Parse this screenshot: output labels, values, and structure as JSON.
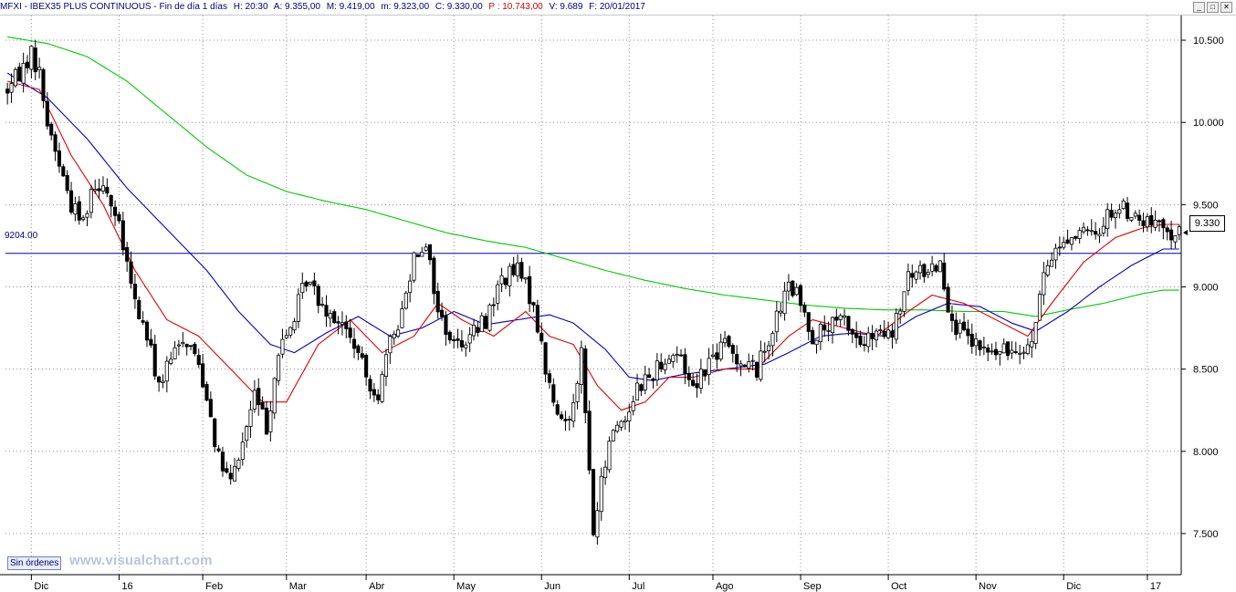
{
  "titlebar": {
    "symbol": "MFXI - IBEX35 PLUS CONTINUOUS - Fin de día 1 días",
    "hour": "H: 20:30",
    "open": "A: 9.355,00",
    "max": "M: 9.419,00",
    "min": "m: 9.323,00",
    "close": "C: 9.330,00",
    "p_value": "P : 10.743,00",
    "volume": "V: 9.689",
    "date": "F: 20/01/2017",
    "buttons": [
      "_",
      "□",
      "✕"
    ]
  },
  "colors": {
    "frame_blue": "#000080",
    "red_value": "#d00000",
    "candle": "#000000",
    "ma_red": "#e00000",
    "ma_blue": "#0000c8",
    "ma_green": "#00cc00",
    "hline": "#0000b0",
    "grid": "#909090"
  },
  "status": {
    "orders": "Sin órdenes",
    "watermark": "www.visualchart.com"
  },
  "chart_data": {
    "type": "candlestick",
    "title": "",
    "ylim": [
      7250,
      10650
    ],
    "y_ticks": [
      "10.500",
      "10.000",
      "9.500",
      "9.000",
      "8.500",
      "8.000",
      "7.500"
    ],
    "y_tick_values": [
      10500,
      10000,
      9500,
      9000,
      8500,
      8000,
      7500
    ],
    "x_labels": [
      "Dic",
      "16",
      "Feb",
      "Mar",
      "Abr",
      "May",
      "Jun",
      "Jul",
      "Ago",
      "Sep",
      "Oct",
      "Nov",
      "Dic",
      "17"
    ],
    "x_label_index": [
      6,
      28,
      49,
      70,
      90,
      112,
      134,
      156,
      177,
      199,
      221,
      243,
      265,
      286
    ],
    "num_bars": 295,
    "horizontal_line": {
      "value": 9204,
      "label": "9204.00"
    },
    "last_price_label": "9.330",
    "price_anchors": [
      [
        0,
        10200
      ],
      [
        3,
        10300
      ],
      [
        6,
        10420
      ],
      [
        8,
        10300
      ],
      [
        10,
        10000
      ],
      [
        13,
        9750
      ],
      [
        16,
        9500
      ],
      [
        19,
        9400
      ],
      [
        21,
        9600
      ],
      [
        24,
        9650
      ],
      [
        28,
        9350
      ],
      [
        32,
        8900
      ],
      [
        35,
        8700
      ],
      [
        38,
        8400
      ],
      [
        41,
        8550
      ],
      [
        44,
        8700
      ],
      [
        47,
        8600
      ],
      [
        50,
        8350
      ],
      [
        53,
        7950
      ],
      [
        56,
        7800
      ],
      [
        59,
        8050
      ],
      [
        62,
        8350
      ],
      [
        65,
        8150
      ],
      [
        68,
        8600
      ],
      [
        71,
        8750
      ],
      [
        75,
        9050
      ],
      [
        79,
        8900
      ],
      [
        83,
        8800
      ],
      [
        87,
        8650
      ],
      [
        90,
        8450
      ],
      [
        93,
        8350
      ],
      [
        96,
        8650
      ],
      [
        99,
        8850
      ],
      [
        102,
        9200
      ],
      [
        105,
        9280
      ],
      [
        108,
        8850
      ],
      [
        112,
        8650
      ],
      [
        116,
        8700
      ],
      [
        120,
        8800
      ],
      [
        124,
        9050
      ],
      [
        128,
        9100
      ],
      [
        132,
        8900
      ],
      [
        135,
        8500
      ],
      [
        138,
        8200
      ],
      [
        141,
        8200
      ],
      [
        144,
        8600
      ],
      [
        147,
        7500
      ],
      [
        149,
        7800
      ],
      [
        152,
        8150
      ],
      [
        155,
        8200
      ],
      [
        158,
        8400
      ],
      [
        161,
        8450
      ],
      [
        164,
        8550
      ],
      [
        168,
        8600
      ],
      [
        172,
        8400
      ],
      [
        176,
        8550
      ],
      [
        180,
        8650
      ],
      [
        184,
        8550
      ],
      [
        188,
        8500
      ],
      [
        192,
        8750
      ],
      [
        196,
        9000
      ],
      [
        198,
        8950
      ],
      [
        202,
        8700
      ],
      [
        206,
        8750
      ],
      [
        210,
        8800
      ],
      [
        214,
        8650
      ],
      [
        218,
        8700
      ],
      [
        222,
        8700
      ],
      [
        226,
        9050
      ],
      [
        230,
        9100
      ],
      [
        234,
        9150
      ],
      [
        236,
        8900
      ],
      [
        238,
        8750
      ],
      [
        242,
        8650
      ],
      [
        246,
        8600
      ],
      [
        250,
        8600
      ],
      [
        254,
        8650
      ],
      [
        257,
        8650
      ],
      [
        259,
        8950
      ],
      [
        262,
        9200
      ],
      [
        265,
        9280
      ],
      [
        269,
        9330
      ],
      [
        273,
        9300
      ],
      [
        276,
        9450
      ],
      [
        280,
        9480
      ],
      [
        284,
        9400
      ],
      [
        288,
        9380
      ],
      [
        290,
        9330
      ]
    ],
    "ma_short_anchors": [
      [
        0,
        10250
      ],
      [
        8,
        10200
      ],
      [
        16,
        9800
      ],
      [
        24,
        9500
      ],
      [
        32,
        9100
      ],
      [
        40,
        8800
      ],
      [
        48,
        8700
      ],
      [
        56,
        8500
      ],
      [
        64,
        8300
      ],
      [
        70,
        8300
      ],
      [
        78,
        8650
      ],
      [
        86,
        8800
      ],
      [
        94,
        8600
      ],
      [
        102,
        8700
      ],
      [
        108,
        8900
      ],
      [
        114,
        8800
      ],
      [
        122,
        8700
      ],
      [
        130,
        8850
      ],
      [
        136,
        8700
      ],
      [
        142,
        8650
      ],
      [
        148,
        8400
      ],
      [
        154,
        8250
      ],
      [
        160,
        8300
      ],
      [
        166,
        8450
      ],
      [
        172,
        8450
      ],
      [
        180,
        8500
      ],
      [
        188,
        8500
      ],
      [
        196,
        8700
      ],
      [
        202,
        8800
      ],
      [
        210,
        8750
      ],
      [
        218,
        8700
      ],
      [
        226,
        8850
      ],
      [
        232,
        8950
      ],
      [
        240,
        8900
      ],
      [
        248,
        8800
      ],
      [
        256,
        8700
      ],
      [
        262,
        8900
      ],
      [
        270,
        9150
      ],
      [
        278,
        9300
      ],
      [
        285,
        9360
      ],
      [
        290,
        9380
      ]
    ],
    "ma_mid_anchors": [
      [
        0,
        10300
      ],
      [
        10,
        10150
      ],
      [
        20,
        9900
      ],
      [
        30,
        9600
      ],
      [
        40,
        9350
      ],
      [
        50,
        9100
      ],
      [
        58,
        8850
      ],
      [
        66,
        8650
      ],
      [
        72,
        8600
      ],
      [
        80,
        8720
      ],
      [
        88,
        8820
      ],
      [
        96,
        8700
      ],
      [
        104,
        8750
      ],
      [
        112,
        8850
      ],
      [
        120,
        8770
      ],
      [
        128,
        8800
      ],
      [
        136,
        8830
      ],
      [
        142,
        8780
      ],
      [
        150,
        8620
      ],
      [
        156,
        8450
      ],
      [
        162,
        8430
      ],
      [
        170,
        8470
      ],
      [
        180,
        8500
      ],
      [
        190,
        8530
      ],
      [
        196,
        8600
      ],
      [
        204,
        8700
      ],
      [
        212,
        8720
      ],
      [
        220,
        8700
      ],
      [
        228,
        8820
      ],
      [
        236,
        8900
      ],
      [
        244,
        8880
      ],
      [
        252,
        8780
      ],
      [
        258,
        8730
      ],
      [
        266,
        8850
      ],
      [
        274,
        9000
      ],
      [
        282,
        9130
      ],
      [
        290,
        9230
      ]
    ],
    "ma_long_anchors": [
      [
        0,
        10520
      ],
      [
        10,
        10480
      ],
      [
        20,
        10400
      ],
      [
        30,
        10250
      ],
      [
        40,
        10050
      ],
      [
        50,
        9850
      ],
      [
        60,
        9680
      ],
      [
        70,
        9580
      ],
      [
        80,
        9520
      ],
      [
        90,
        9470
      ],
      [
        100,
        9400
      ],
      [
        110,
        9330
      ],
      [
        120,
        9280
      ],
      [
        130,
        9240
      ],
      [
        140,
        9170
      ],
      [
        150,
        9100
      ],
      [
        160,
        9040
      ],
      [
        170,
        8990
      ],
      [
        180,
        8950
      ],
      [
        190,
        8920
      ],
      [
        200,
        8890
      ],
      [
        210,
        8870
      ],
      [
        220,
        8860
      ],
      [
        230,
        8860
      ],
      [
        240,
        8850
      ],
      [
        250,
        8850
      ],
      [
        258,
        8820
      ],
      [
        266,
        8860
      ],
      [
        275,
        8900
      ],
      [
        285,
        8960
      ],
      [
        290,
        8980
      ]
    ]
  }
}
